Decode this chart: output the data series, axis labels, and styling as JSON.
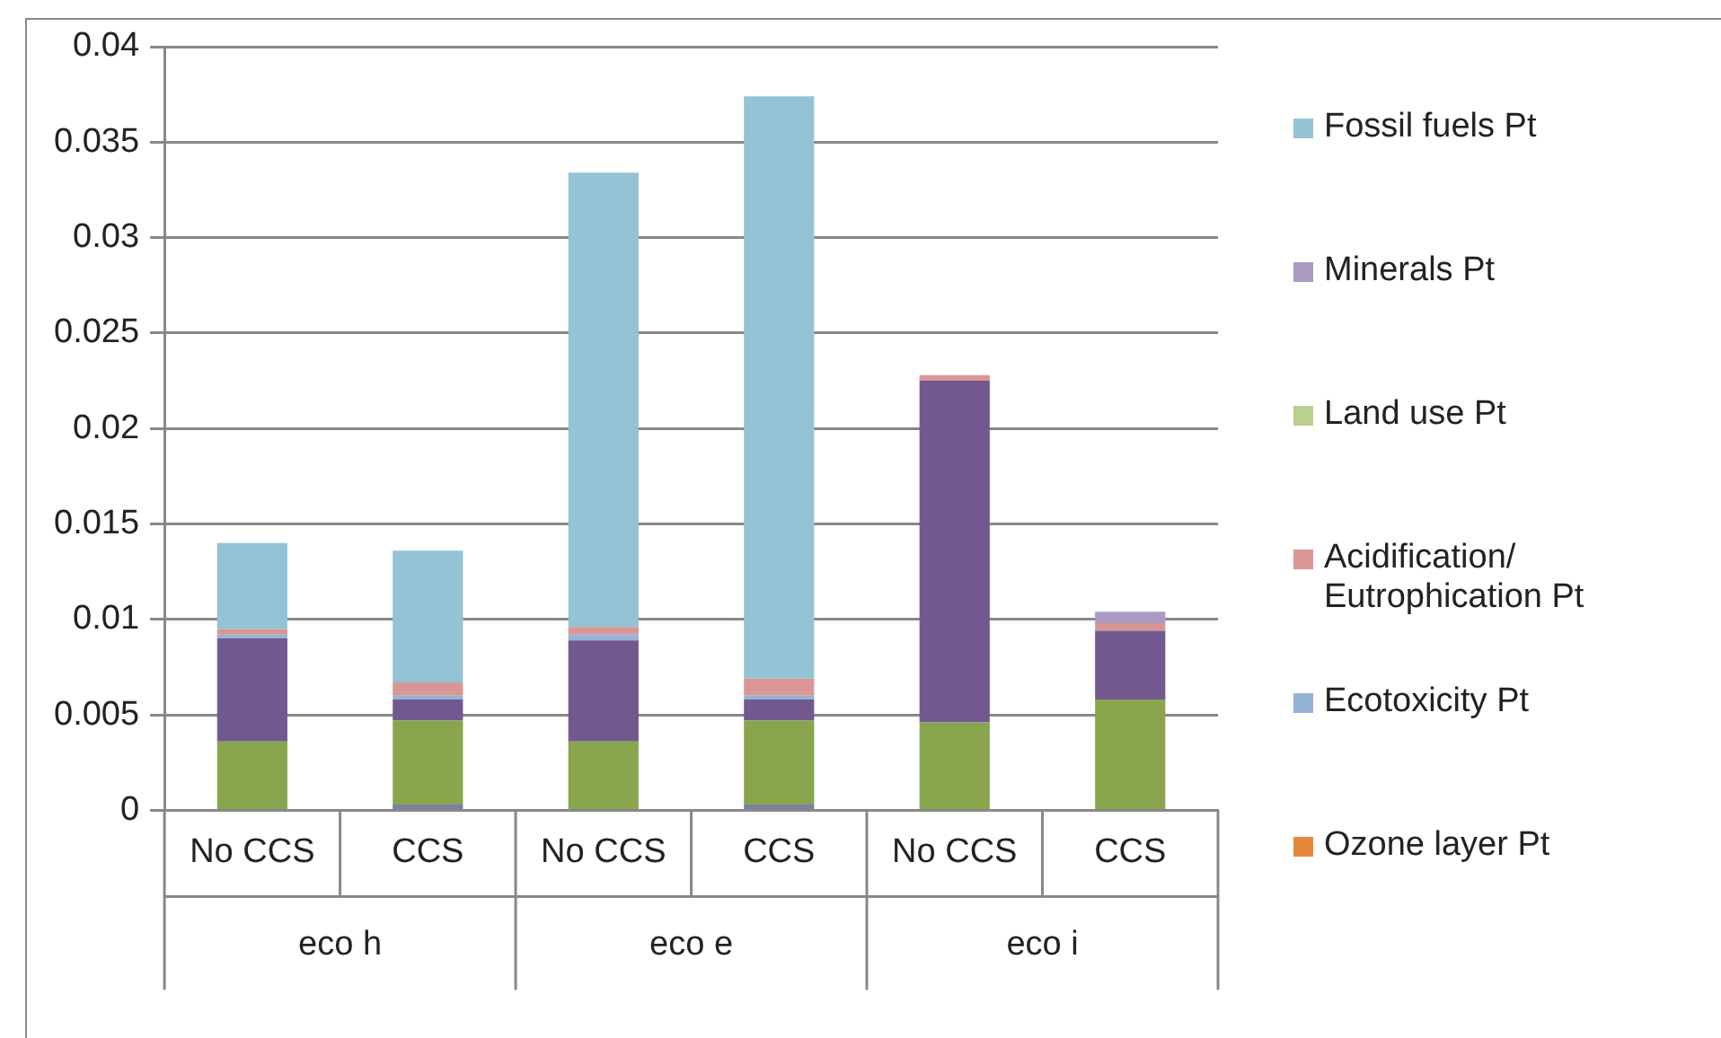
{
  "chart_data": {
    "type": "bar",
    "stacked": true,
    "categories": [
      "No CCS",
      "CCS",
      "No CCS",
      "CCS",
      "No CCS",
      "CCS"
    ],
    "annotations": [
      "eco h",
      "eco e",
      "eco i"
    ],
    "series": [
      {
        "color": "#7b7fa0",
        "values": [
          0,
          0.0003,
          0,
          0.0003,
          0,
          0
        ]
      },
      {
        "color": "#89a54e",
        "values": [
          0.0036,
          0.0044,
          0.0036,
          0.0044,
          0.0046,
          0.0058
        ]
      },
      {
        "color": "#71588f",
        "values": [
          0.0054,
          0.0011,
          0.0053,
          0.0011,
          0.0179,
          0.0036
        ]
      },
      {
        "name": "Ozone layer Pt",
        "color": "#e6883a",
        "values": [
          0,
          0,
          0,
          0,
          0,
          0
        ]
      },
      {
        "name": "Ecotoxicity Pt",
        "color": "#95b3d7",
        "values": [
          0.0002,
          0.0002,
          0.0003,
          0.0002,
          0,
          0
        ]
      },
      {
        "name": "Acidification/Eutrophication Pt",
        "color": "#d99694",
        "values": [
          0.0003,
          0.0007,
          0.0004,
          0.0009,
          0.0003,
          0.0004
        ]
      },
      {
        "name": "Land use Pt",
        "color": "#b9d08f",
        "values": [
          0,
          0,
          0,
          0,
          0,
          0
        ]
      },
      {
        "name": "Minerals Pt",
        "color": "#a99bc3",
        "values": [
          0,
          0,
          0,
          0,
          0,
          0.0006
        ]
      },
      {
        "name": "Fossil fuels Pt",
        "color": "#93c3d5",
        "values": [
          0.0045,
          0.0069,
          0.0238,
          0.0305,
          0,
          0
        ]
      }
    ],
    "ylim": [
      0,
      0.04
    ],
    "yticks": [
      0,
      0.005,
      0.01,
      0.015,
      0.02,
      0.025,
      0.03,
      0.035,
      0.04
    ],
    "grid": "y",
    "legend": "right"
  }
}
